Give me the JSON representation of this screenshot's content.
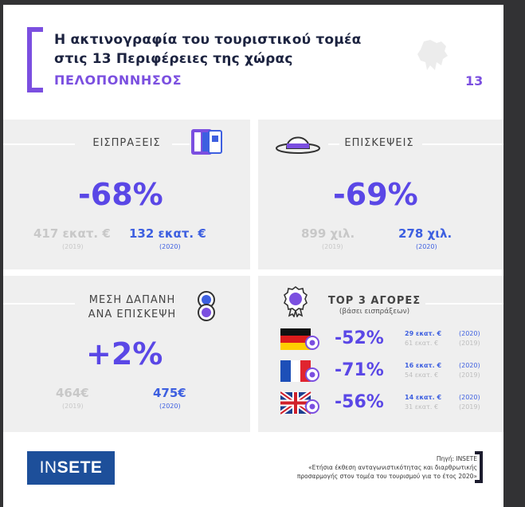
{
  "header": {
    "title_line1": "Η ακτινογραφία του τουριστικού τομέα",
    "title_line2": "στις 13 Περιφέρειες της χώρας",
    "region": "ΠΕΛΟΠΟΝΝΗΣΟΣ",
    "number": "13"
  },
  "receipts": {
    "label": "ΕΙΣΠΡΑΞΕΙΣ",
    "change": "-68%",
    "old_value": "417 εκατ. €",
    "old_year": "(2019)",
    "new_value": "132 εκατ. €",
    "new_year": "(2020)"
  },
  "visits": {
    "label": "ΕΠΙΣΚΕΨΕΙΣ",
    "change": "-69%",
    "old_value": "899 χιλ.",
    "old_year": "(2019)",
    "new_value": "278 χιλ.",
    "new_year": "(2020)"
  },
  "spend": {
    "label_line1": "ΜΕΣΗ ΔΑΠΑΝΗ",
    "label_line2": "ΑΝΑ ΕΠΙΣΚΕΨΗ",
    "change": "+2%",
    "old_value": "464€",
    "old_year": "(2019)",
    "new_value": "475€",
    "new_year": "(2020)"
  },
  "markets": {
    "label": "TOP 3 ΑΓΟΡΕΣ",
    "sublabel": "(βάσει εισπράξεων)",
    "items": [
      {
        "flag": "germany",
        "change": "-52%",
        "new_value": "29 εκατ. €",
        "new_year": "(2020)",
        "old_value": "61 εκατ. €",
        "old_year": "(2019)"
      },
      {
        "flag": "france",
        "change": "-71%",
        "new_value": "16 εκατ. €",
        "new_year": "(2020)",
        "old_value": "54 εκατ. €",
        "old_year": "(2019)"
      },
      {
        "flag": "united-kingdom",
        "change": "-56%",
        "new_value": "14 εκατ. €",
        "new_year": "(2020)",
        "old_value": "31 εκατ. €",
        "old_year": "(2019)"
      }
    ]
  },
  "footer": {
    "logo_part1": "IN",
    "logo_part2": "SETE",
    "source_line1": "Πηγή: INSETE",
    "source_line2": "«Ετήσια έκθεση ανταγωνιστικότητας και διαρθρωτικής",
    "source_line3": "προσαρμογής στον τομέα του τουρισμού για το έτος 2020»"
  },
  "colors": {
    "accent": "#7b4fe0",
    "value_blue": "#3d5fe0",
    "big_number": "#5a47e6",
    "logo_bg": "#1d4f9a"
  }
}
